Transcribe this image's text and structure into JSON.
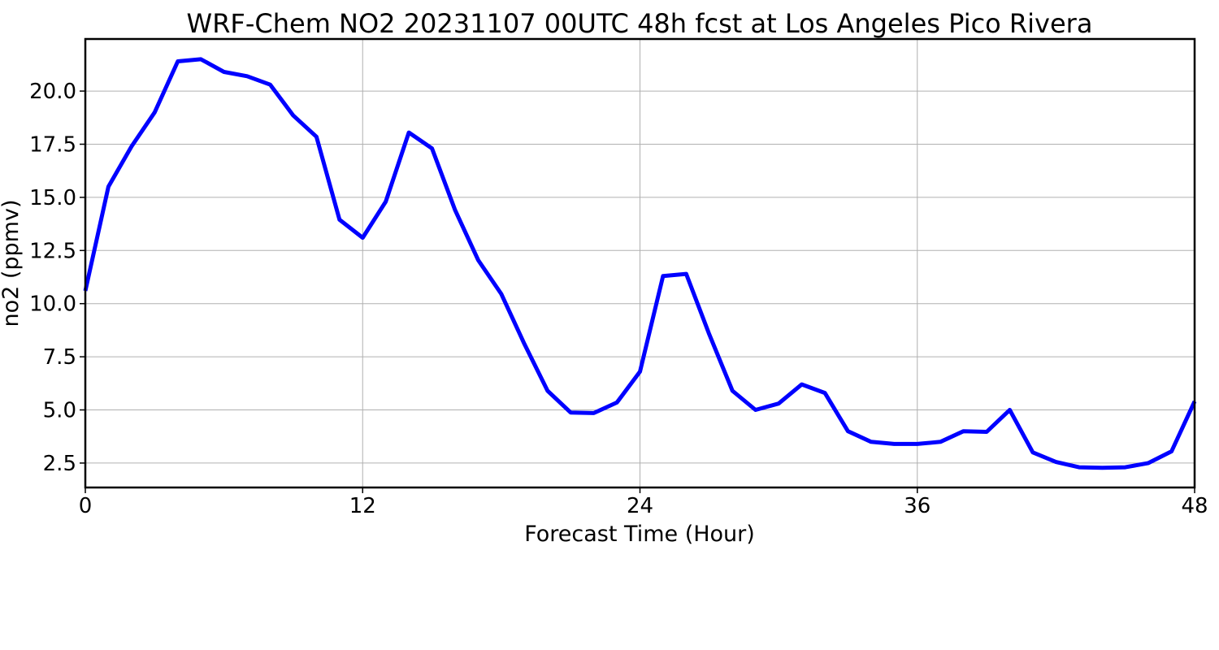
{
  "chart_data": {
    "type": "line",
    "title": "WRF-Chem NO2  20231107 00UTC 48h fcst at Los Angeles Pico Rivera",
    "xlabel": "Forecast Time (Hour)",
    "ylabel": "no2  (ppmv)",
    "xlim": [
      0,
      48
    ],
    "ylim": [
      1.35,
      22.45
    ],
    "xticks": [
      0,
      12,
      24,
      36,
      48
    ],
    "xtick_labels": [
      "0",
      "12",
      "24",
      "36",
      "48"
    ],
    "yticks": [
      2.5,
      5.0,
      7.5,
      10.0,
      12.5,
      15.0,
      17.5,
      20.0
    ],
    "ytick_labels": [
      "2.5",
      "5.0",
      "7.5",
      "10.0",
      "12.5",
      "15.0",
      "17.5",
      "20.0"
    ],
    "grid": true,
    "series": [
      {
        "color": "#0000ff",
        "x": [
          0,
          1,
          2,
          3,
          4,
          5,
          6,
          7,
          8,
          9,
          10,
          11,
          12,
          13,
          14,
          15,
          16,
          17,
          18,
          19,
          20,
          21,
          22,
          23,
          24,
          25,
          26,
          27,
          28,
          29,
          30,
          31,
          32,
          33,
          34,
          35,
          36,
          37,
          38,
          39,
          40,
          41,
          42,
          43,
          44,
          45,
          46,
          47,
          48
        ],
        "y": [
          10.6,
          15.5,
          17.4,
          19.0,
          21.4,
          21.5,
          20.9,
          20.7,
          20.3,
          18.85,
          17.85,
          13.95,
          13.1,
          14.8,
          18.05,
          17.3,
          14.4,
          12.05,
          10.45,
          8.1,
          5.9,
          4.88,
          4.85,
          5.35,
          6.8,
          11.3,
          11.4,
          8.55,
          5.9,
          5.0,
          5.3,
          6.2,
          5.8,
          4.0,
          3.5,
          3.4,
          3.4,
          3.5,
          4.0,
          3.97,
          5.0,
          3.0,
          2.55,
          2.3,
          2.28,
          2.3,
          2.5,
          3.05,
          5.4
        ]
      }
    ]
  }
}
